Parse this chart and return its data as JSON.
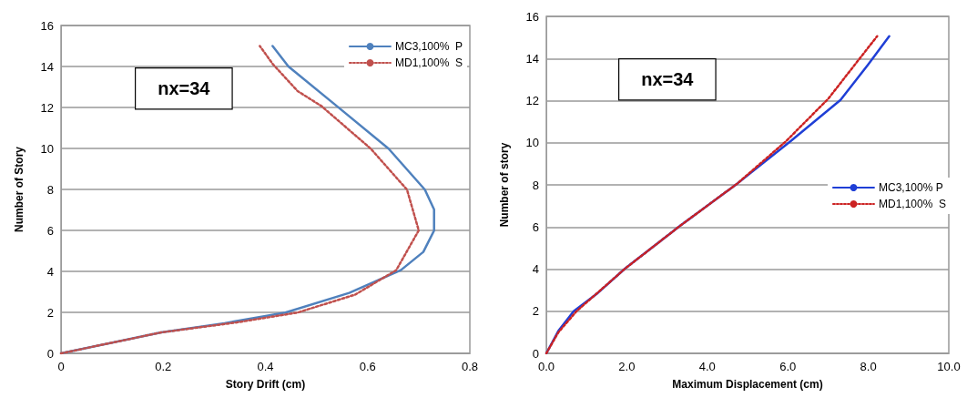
{
  "chart_data": [
    {
      "type": "line",
      "xlabel": "Story Drift (cm)",
      "ylabel": "Number of Story",
      "annotations": [
        "nx=34"
      ],
      "xlim": [
        0,
        0.8
      ],
      "xticks": [
        0,
        0.2,
        0.4,
        0.6,
        0.8
      ],
      "ylim": [
        0,
        16
      ],
      "yticks": [
        0,
        2,
        4,
        6,
        8,
        10,
        12,
        14,
        16
      ],
      "grid": "y",
      "legend": "top right",
      "marker": "none",
      "series": [
        {
          "name": "MC3,100%  P",
          "color": "#4f81bd",
          "line_style": "solid",
          "x": [
            0,
            0.196,
            0.32,
            0.439,
            0.564,
            0.665,
            0.709,
            0.73,
            0.73,
            0.712,
            0.641,
            0.54,
            0.445,
            0.414
          ],
          "values": [
            0,
            1.02,
            1.47,
            1.99,
            2.95,
            4.06,
            4.95,
            5.99,
            7.02,
            7.99,
            9.99,
            12.06,
            14.0,
            15.0
          ]
        },
        {
          "name": "MD1,100%  S",
          "color": "#c0504d",
          "line_style": "dotted",
          "x": [
            0,
            0.196,
            0.344,
            0.463,
            0.576,
            0.656,
            0.7,
            0.677,
            0.606,
            0.51,
            0.463,
            0.415,
            0.389
          ],
          "values": [
            0,
            1.02,
            1.51,
            1.99,
            2.87,
            4.06,
            6.0,
            7.99,
            9.99,
            12.06,
            12.8,
            14.1,
            15.0
          ]
        }
      ]
    },
    {
      "type": "line",
      "xlabel": "Maximum Displacement (cm)",
      "ylabel": "Number of story",
      "annotations": [
        "nx=34"
      ],
      "xlim": [
        0,
        10
      ],
      "xticks": [
        {
          "value": 0,
          "label": "0.0"
        },
        {
          "value": 2,
          "label": "2.0"
        },
        {
          "value": 4,
          "label": "4.0"
        },
        {
          "value": 6,
          "label": "6.0"
        },
        {
          "value": 8,
          "label": "8.0"
        },
        {
          "value": 10,
          "label": "10.0"
        }
      ],
      "ylim": [
        0,
        16
      ],
      "yticks": [
        0,
        2,
        4,
        6,
        8,
        10,
        12,
        14,
        16
      ],
      "grid": "y",
      "legend": "right",
      "marker": "none",
      "series": [
        {
          "name": "MC3,100% P",
          "color": "#1f3fd6",
          "line_style": "solid",
          "x": [
            0,
            0.3,
            0.68,
            1.28,
            1.96,
            3.32,
            4.75,
            6.07,
            7.31,
            7.99,
            8.52
          ],
          "values": [
            0,
            1.07,
            2.0,
            2.87,
            4.03,
            6.05,
            8.07,
            10.08,
            12.03,
            13.7,
            15.06
          ]
        },
        {
          "name": "MD1,100%  S",
          "color": "#cc2222",
          "line_style": "dotted",
          "x": [
            0,
            0.3,
            0.75,
            1.96,
            3.32,
            4.75,
            5.96,
            7.01,
            7.54,
            8.22
          ],
          "values": [
            0,
            1.0,
            2.0,
            4.03,
            6.05,
            8.07,
            10.08,
            12.1,
            13.4,
            15.06
          ]
        }
      ]
    }
  ]
}
